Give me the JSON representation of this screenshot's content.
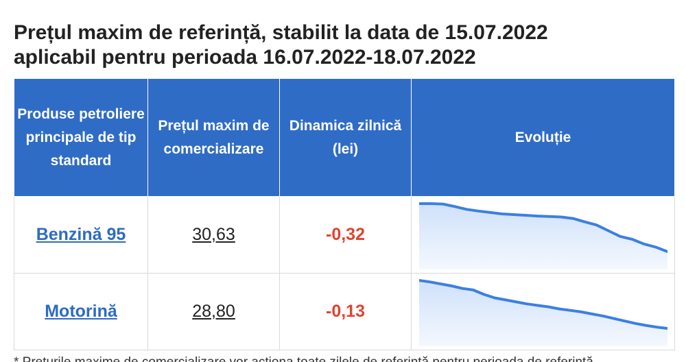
{
  "title": {
    "line1": "Prețul maxim de referință, stabilit la data de 15.07.2022",
    "line2": "aplicabil pentru perioada 16.07.2022-18.07.2022"
  },
  "table": {
    "headers": {
      "product": "Produse petroliere principale de tip standard",
      "price": "Prețul maxim de comercializare",
      "dynamic": "Dinamica zilnică (lei)",
      "evolution": "Evoluție"
    },
    "rows": [
      {
        "product": "Benzină 95",
        "price": "30,63",
        "dynamic": "-0,32",
        "trend": [
          34.0,
          34.0,
          33.97,
          33.8,
          33.6,
          33.48,
          33.38,
          33.28,
          33.23,
          33.18,
          33.13,
          33.1,
          33.06,
          32.96,
          32.72,
          32.5,
          32.1,
          31.7,
          31.5,
          31.17,
          30.95,
          30.63
        ]
      },
      {
        "product": "Motorină",
        "price": "28,80",
        "dynamic": "-0,13",
        "trend": [
          33.6,
          33.45,
          33.25,
          33.05,
          32.8,
          32.65,
          32.2,
          31.85,
          31.65,
          31.45,
          31.25,
          31.1,
          30.95,
          30.75,
          30.6,
          30.45,
          30.25,
          30.05,
          29.8,
          29.55,
          29.3,
          29.1,
          28.93,
          28.8
        ]
      }
    ]
  },
  "colors": {
    "header_bg": "#2f6cc6",
    "link": "#2d6bc4",
    "negative": "#e0432e",
    "spark_line": "#3c80e0",
    "spark_fill": "#cfe1fa"
  },
  "footnote": "* Prețurile maxime de comercializare vor acționa toate zilele de referință pentru perioada de referință"
}
